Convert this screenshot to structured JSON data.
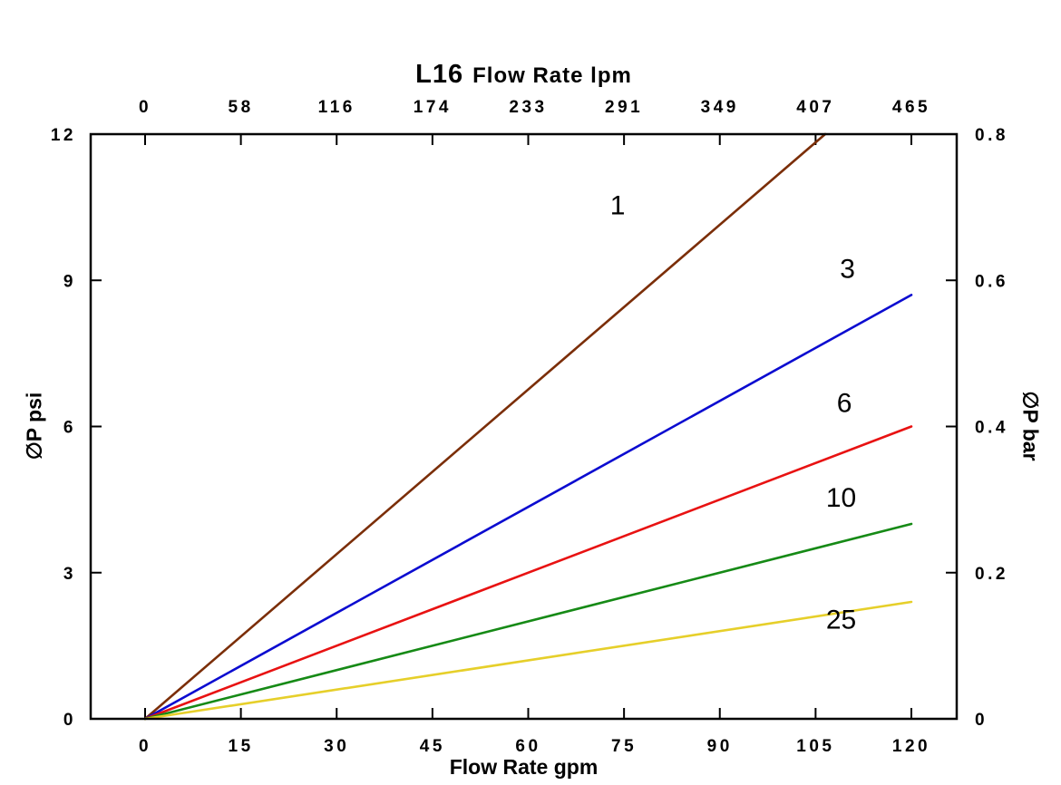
{
  "chart_data": {
    "type": "line",
    "title": {
      "model": "L16",
      "text": "Flow Rate lpm"
    },
    "xlabel": "Flow Rate gpm",
    "ylabel_left": "∅P psi",
    "ylabel_right": "∅P bar",
    "x_ticks_gpm": [
      0,
      15,
      30,
      45,
      60,
      75,
      90,
      105,
      120
    ],
    "top_ticks_lpm": [
      0,
      58,
      116,
      174,
      233,
      291,
      349,
      407,
      465
    ],
    "y_ticks_psi": [
      "0",
      "3",
      "6",
      "9",
      "12"
    ],
    "y_ticks_bar": [
      "0",
      "0.2",
      "0.4",
      "0.6",
      "0.8"
    ],
    "xlim": [
      0,
      120
    ],
    "ylim_psi": [
      0,
      12
    ],
    "ylim_bar": [
      0,
      0.8
    ],
    "grid": false,
    "legend": "inline-labels",
    "axis_color": "#000000",
    "series": [
      {
        "name": "1",
        "color": "#7b2e08",
        "points": [
          [
            0,
            0
          ],
          [
            106.5,
            12
          ]
        ],
        "label_xy": [
          74,
          10.35
        ]
      },
      {
        "name": "3",
        "color": "#0b0bd0",
        "points": [
          [
            0,
            0
          ],
          [
            120,
            8.7
          ]
        ],
        "label_xy": [
          110,
          9.05
        ]
      },
      {
        "name": "6",
        "color": "#e81212",
        "points": [
          [
            0,
            0
          ],
          [
            120,
            6.0
          ]
        ],
        "label_xy": [
          109.5,
          6.3
        ]
      },
      {
        "name": "10",
        "color": "#168a16",
        "points": [
          [
            0,
            0
          ],
          [
            120,
            4.0
          ]
        ],
        "label_xy": [
          109,
          4.35
        ]
      },
      {
        "name": "25",
        "color": "#e6cf2a",
        "points": [
          [
            0,
            0
          ],
          [
            120,
            2.4
          ]
        ],
        "label_xy": [
          109,
          1.85
        ]
      }
    ]
  }
}
